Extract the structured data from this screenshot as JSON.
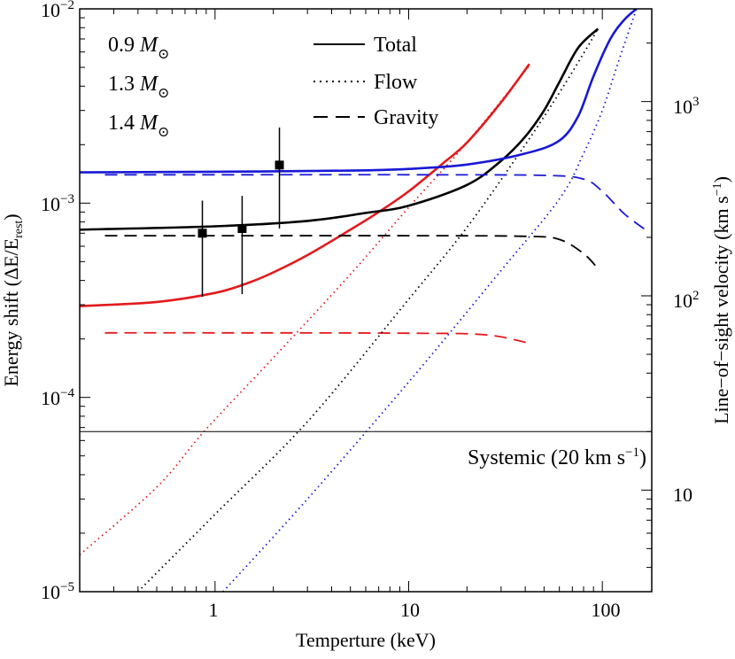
{
  "chart_data": {
    "type": "line",
    "xlabel": "Temperture (keV)",
    "ylabel": "Energy shift (ΔE/E",
    "ylabel_sub": "rest",
    "ylabel_close": ")",
    "y2label": "Line−of−sight velocity (km s",
    "y2label_sup": "−1",
    "y2label_close": ")",
    "xscale": "log",
    "yscale": "log",
    "xlim": [
      0.2,
      180
    ],
    "ylim": [
      1e-05,
      0.01
    ],
    "x_ticks": [
      "1",
      "10",
      "100"
    ],
    "y_tick_base": "10",
    "y_tick_exps": [
      "−5",
      "−4",
      "−3",
      "−2"
    ],
    "y2_ticks": [
      "10",
      "10",
      "10"
    ],
    "y2_tick_sups": [
      "",
      "2",
      "3"
    ],
    "legend_mass": [
      {
        "label": "0.9 ",
        "sym": "M",
        "sub": "⊙",
        "color": "#e31a1c"
      },
      {
        "label": "1.3 ",
        "sym": "M",
        "sub": "⊙",
        "color": "#000000"
      },
      {
        "label": "1.4 ",
        "sym": "M",
        "sub": "⊙",
        "color": "#1818d6"
      }
    ],
    "legend_style": [
      {
        "label": "Total",
        "dash": "solid"
      },
      {
        "label": "Flow",
        "dash": "dotted"
      },
      {
        "label": "Gravity",
        "dash": "dashed"
      }
    ],
    "systemic": {
      "label": "Systemic (20 km s",
      "sup": "−1",
      "close": ")",
      "value": 6.67e-05
    },
    "series": [
      {
        "name": "0.9 Total",
        "color": "#e31a1c",
        "style": "solid",
        "points": [
          [
            0.2,
            0.000295
          ],
          [
            0.5,
            0.00031
          ],
          [
            1,
            0.000345
          ],
          [
            1.5,
            0.00039
          ],
          [
            2,
            0.00044
          ],
          [
            3,
            0.00054
          ],
          [
            5,
            0.00073
          ],
          [
            7,
            0.0009
          ],
          [
            10,
            0.00115
          ],
          [
            15,
            0.0016
          ],
          [
            20,
            0.00205
          ],
          [
            30,
            0.0033
          ],
          [
            42,
            0.0052
          ]
        ]
      },
      {
        "name": "0.9 Flow",
        "color": "#e31a1c",
        "style": "dotted",
        "points": [
          [
            0.2,
            1.55e-05
          ],
          [
            0.5,
            3.45e-05
          ],
          [
            0.88,
            6.7e-05
          ],
          [
            2,
            0.00016
          ],
          [
            5,
            0.00043
          ],
          [
            10,
            0.00095
          ],
          [
            20,
            0.00205
          ],
          [
            42,
            0.0051
          ]
        ]
      },
      {
        "name": "0.9 Gravity",
        "color": "#e31a1c",
        "style": "dashed",
        "points": [
          [
            0.27,
            0.000215
          ],
          [
            1,
            0.000215
          ],
          [
            10,
            0.000214
          ],
          [
            25,
            0.00021
          ],
          [
            42,
            0.00019
          ]
        ]
      },
      {
        "name": "1.3 Total",
        "color": "#000000",
        "style": "solid",
        "points": [
          [
            0.2,
            0.00073
          ],
          [
            1,
            0.00076
          ],
          [
            3,
            0.00081
          ],
          [
            6,
            0.00089
          ],
          [
            10,
            0.00097
          ],
          [
            20,
            0.00124
          ],
          [
            30,
            0.00165
          ],
          [
            40,
            0.0022
          ],
          [
            50,
            0.003
          ],
          [
            60,
            0.0042
          ],
          [
            75,
            0.0063
          ],
          [
            95,
            0.0079
          ]
        ]
      },
      {
        "name": "1.3 Flow",
        "color": "#000000",
        "style": "dotted",
        "points": [
          [
            0.4,
            1e-05
          ],
          [
            1,
            2.5e-05
          ],
          [
            3,
            7.5e-05
          ],
          [
            10,
            0.00032
          ],
          [
            20,
            0.00075
          ],
          [
            40,
            0.002
          ],
          [
            60,
            0.0037
          ],
          [
            80,
            0.0059
          ],
          [
            95,
            0.0079
          ]
        ]
      },
      {
        "name": "1.3 Gravity",
        "color": "#000000",
        "style": "dashed",
        "points": [
          [
            0.27,
            0.00068
          ],
          [
            1,
            0.00068
          ],
          [
            10,
            0.00068
          ],
          [
            40,
            0.000675
          ],
          [
            60,
            0.00065
          ],
          [
            80,
            0.00055
          ],
          [
            95,
            0.00046
          ]
        ]
      },
      {
        "name": "1.4 Total",
        "color": "#1818d6",
        "style": "solid",
        "points": [
          [
            0.2,
            0.00144
          ],
          [
            1,
            0.00145
          ],
          [
            5,
            0.00147
          ],
          [
            10,
            0.0015
          ],
          [
            20,
            0.00158
          ],
          [
            40,
            0.0018
          ],
          [
            60,
            0.0021
          ],
          [
            75,
            0.0028
          ],
          [
            90,
            0.0045
          ],
          [
            110,
            0.007
          ],
          [
            130,
            0.0088
          ],
          [
            150,
            0.01
          ]
        ]
      },
      {
        "name": "1.4 Flow",
        "color": "#1818d6",
        "style": "dotted",
        "points": [
          [
            1.1,
            1e-05
          ],
          [
            3,
            3e-05
          ],
          [
            10,
            0.00012
          ],
          [
            30,
            0.00045
          ],
          [
            60,
            0.00105
          ],
          [
            80,
            0.0018
          ],
          [
            100,
            0.003
          ],
          [
            120,
            0.0052
          ],
          [
            150,
            0.01
          ]
        ]
      },
      {
        "name": "1.4 Gravity",
        "color": "#1818d6",
        "style": "dashed",
        "points": [
          [
            0.27,
            0.0014
          ],
          [
            1,
            0.0014
          ],
          [
            10,
            0.0014
          ],
          [
            50,
            0.00139
          ],
          [
            80,
            0.00133
          ],
          [
            100,
            0.00115
          ],
          [
            130,
            0.00088
          ],
          [
            170,
            0.00072
          ]
        ]
      }
    ],
    "datapoints": [
      {
        "x": 0.86,
        "y": 0.0007,
        "ylo": 0.00033,
        "yhi": 0.00103
      },
      {
        "x": 1.38,
        "y": 0.00074,
        "ylo": 0.00034,
        "yhi": 0.00109
      },
      {
        "x": 2.15,
        "y": 0.00157,
        "ylo": 0.00074,
        "yhi": 0.00245
      }
    ]
  }
}
